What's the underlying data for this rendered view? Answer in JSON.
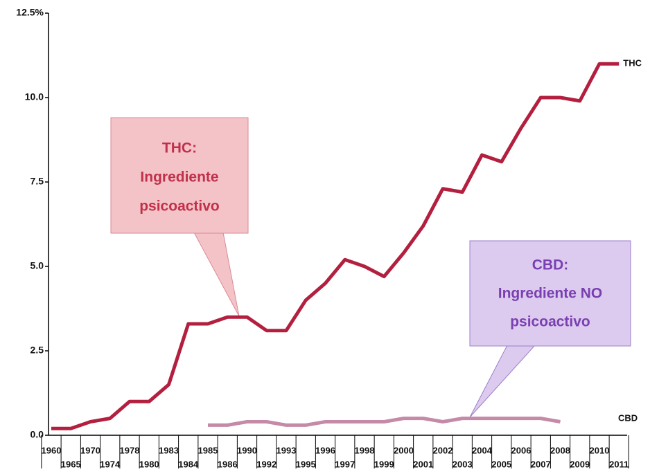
{
  "chart_data": {
    "type": "line",
    "categories": [
      "1960",
      "1965",
      "1970",
      "1974",
      "1978",
      "1980",
      "1983",
      "1984",
      "1985",
      "1986",
      "1990",
      "1992",
      "1993",
      "1995",
      "1996",
      "1997",
      "1998",
      "1999",
      "2000",
      "2001",
      "2002",
      "2003",
      "2004",
      "2005",
      "2006",
      "2007",
      "2008",
      "2009",
      "2010",
      "2011"
    ],
    "series": [
      {
        "name": "THC",
        "color": "#b3203f",
        "values": [
          0.2,
          0.2,
          0.4,
          0.5,
          1.0,
          1.0,
          1.5,
          3.3,
          3.3,
          3.5,
          3.5,
          3.1,
          3.1,
          4.0,
          4.5,
          5.2,
          5.0,
          4.7,
          5.4,
          6.2,
          7.3,
          7.2,
          8.3,
          8.1,
          9.1,
          10.0,
          10.0,
          9.9,
          11.0,
          11.0
        ]
      },
      {
        "name": "CBD",
        "color": "#c48aa8",
        "values": [
          null,
          null,
          null,
          null,
          null,
          null,
          null,
          null,
          0.3,
          0.3,
          0.4,
          0.4,
          0.3,
          0.3,
          0.4,
          0.4,
          0.4,
          0.4,
          0.5,
          0.5,
          0.4,
          0.5,
          0.5,
          0.5,
          0.5,
          0.5,
          0.4,
          null,
          null,
          null
        ]
      }
    ],
    "ylim": [
      0,
      12.5
    ],
    "yticks": [
      {
        "value": 0,
        "label": "0.0"
      },
      2.5,
      {
        "value": 5,
        "label": "5.0"
      },
      7.5,
      {
        "value": 10,
        "label": "10.0"
      },
      {
        "value": 12.5,
        "label": "12.5%"
      }
    ],
    "annotations": [
      {
        "lines": [
          "THC:",
          "Ingrediente",
          "psicoactivo"
        ]
      },
      {
        "lines": [
          "CBD:",
          "Ingrediente NO",
          "psicoactivo"
        ]
      }
    ]
  }
}
